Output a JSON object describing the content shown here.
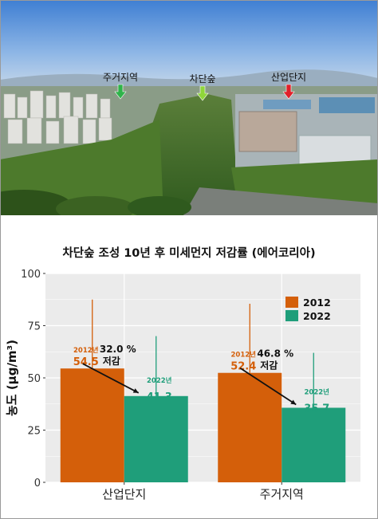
{
  "photo": {
    "labels": [
      {
        "text": "주거지역",
        "arrow_color": "#2fb34a"
      },
      {
        "text": "차단숲",
        "arrow_color": "#8fd63a"
      },
      {
        "text": "산업단지",
        "arrow_color": "#e0202a"
      }
    ]
  },
  "chart_data": {
    "type": "bar",
    "title": "차단숲 조성 10년 후 미세먼지 저감률 (에어코리아)",
    "ylabel": "농도 (μg/m³)",
    "xlabel": "",
    "ylim": [
      0,
      100
    ],
    "yticks": [
      0,
      25,
      50,
      75,
      100
    ],
    "categories": [
      "산업단지",
      "주거지역"
    ],
    "series": [
      {
        "name": "2012",
        "color": "#d45f0a",
        "values": [
          54.5,
          52.4
        ],
        "error_upper": [
          87.5,
          85.5
        ],
        "tag": "2012년"
      },
      {
        "name": "2022",
        "color": "#1f9e7a",
        "values": [
          41.3,
          35.7
        ],
        "error_upper": [
          70.0,
          62.0
        ],
        "tag": "2022년"
      }
    ],
    "annotations": [
      {
        "category": "산업단지",
        "percent": "32.0 %",
        "word": "저감"
      },
      {
        "category": "주거지역",
        "percent": "46.8 %",
        "word": "저감"
      }
    ],
    "legend_position": "top-right",
    "grid": true
  }
}
